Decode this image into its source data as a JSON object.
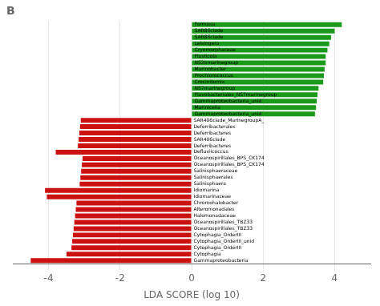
{
  "chart_data": {
    "type": "bar",
    "orientation": "horizontal",
    "title": "B",
    "xlabel": "LDA SCORE (log 10)",
    "categories": [
      "Formosa",
      "SAR86clade",
      "SAR86clade",
      "Leisingera",
      "Cryomorphaceae",
      "Fluviicola",
      "NS2bmarinegroup",
      "Marinobacter",
      "Prochlorococcus",
      "Crocinitomix",
      "NS7marinegroup",
      "Flavobacteriales_NS7marinegroup",
      "Gammaproteobacteria_unid",
      "Marinicelia",
      "Gammaproteobacteria_unid",
      "SAR406clade_MarinegroupA_",
      "Deferribacterales",
      "Deferribacteres",
      "SAR406clade",
      "Deferribacteres",
      "Defluviicoccus",
      "Oceanospirillales_BPS_CK174",
      "Oceanospirillales_BPS_CK174",
      "Salinisphaeraceae",
      "Salinisphaerales",
      "Salinisphaera",
      "Idiomarina",
      "Idiomarinaceae",
      "Chromohalobacter",
      "Alteromonadales",
      "Halomonadaceae",
      "Oceanospirillales_TBZ33",
      "Oceanospirillales_TBZ33",
      "Cytophagia_OrderIII",
      "Cytophagia_OrderIII_unid",
      "Cytophagia_OrderIII",
      "Cytophagia",
      "Gammaproteobacteria"
    ],
    "values": [
      4.2,
      4.0,
      3.9,
      3.85,
      3.8,
      3.75,
      3.75,
      3.72,
      3.7,
      3.68,
      3.55,
      3.52,
      3.5,
      3.48,
      3.45,
      -3.1,
      -3.12,
      -3.14,
      -3.16,
      -3.18,
      -3.8,
      -3.05,
      -3.07,
      -3.09,
      -3.11,
      -3.13,
      -4.1,
      -4.05,
      -3.22,
      -3.24,
      -3.26,
      -3.28,
      -3.3,
      -3.32,
      -3.34,
      -3.36,
      -3.5,
      -4.5
    ],
    "colors": [
      "#1a9a1a",
      "#1a9a1a",
      "#1a9a1a",
      "#1a9a1a",
      "#1a9a1a",
      "#1a9a1a",
      "#1a9a1a",
      "#1a9a1a",
      "#1a9a1a",
      "#1a9a1a",
      "#1a9a1a",
      "#1a9a1a",
      "#1a9a1a",
      "#1a9a1a",
      "#1a9a1a",
      "#cc1111",
      "#cc1111",
      "#cc1111",
      "#cc1111",
      "#cc1111",
      "#cc1111",
      "#cc1111",
      "#cc1111",
      "#cc1111",
      "#cc1111",
      "#cc1111",
      "#cc1111",
      "#cc1111",
      "#cc1111",
      "#cc1111",
      "#cc1111",
      "#cc1111",
      "#cc1111",
      "#cc1111",
      "#cc1111",
      "#cc1111",
      "#cc1111",
      "#cc1111"
    ],
    "xlim": [
      -5,
      5
    ],
    "xticks": [
      -4,
      -2,
      0,
      2,
      4
    ],
    "grid": true,
    "tick_labels": "x"
  }
}
